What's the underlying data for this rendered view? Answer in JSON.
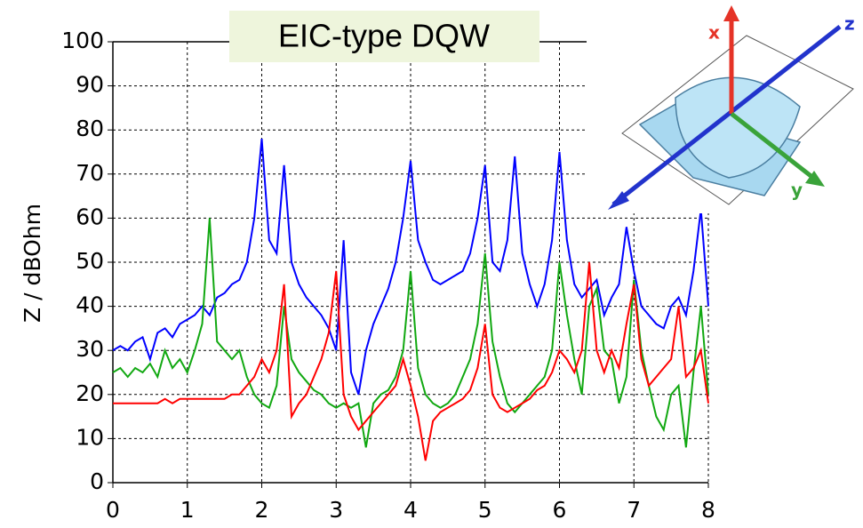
{
  "chart_data": {
    "type": "line",
    "title": "EIC-type DQW",
    "y_label": "Z / dBOhm",
    "x": [
      0,
      0.1,
      0.2,
      0.3,
      0.4,
      0.5,
      0.6,
      0.7,
      0.8,
      0.9,
      1,
      1.1,
      1.2,
      1.3,
      1.4,
      1.5,
      1.6,
      1.7,
      1.8,
      1.9,
      2,
      2.1,
      2.2,
      2.3,
      2.4,
      2.5,
      2.6,
      2.7,
      2.8,
      2.9,
      3,
      3.1,
      3.2,
      3.3,
      3.4,
      3.5,
      3.6,
      3.7,
      3.8,
      3.9,
      4,
      4.1,
      4.2,
      4.3,
      4.4,
      4.5,
      4.6,
      4.7,
      4.8,
      4.9,
      5,
      5.1,
      5.2,
      5.3,
      5.4,
      5.5,
      5.6,
      5.7,
      5.8,
      5.9,
      6,
      6.1,
      6.2,
      6.3,
      6.4,
      6.5,
      6.6,
      6.7,
      6.8,
      6.9,
      7,
      7.1,
      7.2,
      7.3,
      7.4,
      7.5,
      7.6,
      7.7,
      7.8,
      7.9,
      8
    ],
    "series": [
      {
        "name": "x",
        "color": "#0000ff",
        "values": [
          30,
          31,
          30,
          32,
          33,
          28,
          34,
          35,
          33,
          36,
          37,
          38,
          40,
          38,
          42,
          43,
          45,
          46,
          50,
          60,
          78,
          55,
          52,
          72,
          50,
          45,
          42,
          40,
          38,
          35,
          30,
          55,
          25,
          20,
          30,
          36,
          40,
          44,
          50,
          60,
          73,
          55,
          50,
          46,
          45,
          46,
          47,
          48,
          52,
          60,
          72,
          50,
          48,
          55,
          74,
          52,
          45,
          40,
          45,
          55,
          75,
          55,
          45,
          42,
          44,
          46,
          38,
          42,
          45,
          58,
          48,
          40,
          38,
          36,
          35,
          40,
          42,
          38,
          48,
          62,
          40
        ]
      },
      {
        "name": "y",
        "color": "#11a811",
        "values": [
          25,
          26,
          24,
          26,
          25,
          27,
          24,
          30,
          26,
          28,
          25,
          30,
          36,
          60,
          32,
          30,
          28,
          30,
          24,
          20,
          18,
          17,
          22,
          40,
          28,
          25,
          23,
          21,
          20,
          18,
          17,
          18,
          17,
          18,
          8,
          18,
          20,
          21,
          24,
          30,
          48,
          26,
          20,
          18,
          17,
          18,
          20,
          24,
          28,
          36,
          52,
          32,
          24,
          18,
          16,
          18,
          20,
          22,
          24,
          30,
          50,
          38,
          28,
          20,
          40,
          44,
          30,
          28,
          18,
          24,
          46,
          30,
          22,
          15,
          12,
          20,
          22,
          8,
          25,
          40,
          20
        ]
      },
      {
        "name": "z",
        "color": "#ff0000",
        "values": [
          18,
          18,
          18,
          18,
          18,
          18,
          18,
          19,
          18,
          19,
          19,
          19,
          19,
          19,
          19,
          19,
          20,
          20,
          22,
          24,
          28,
          25,
          30,
          45,
          15,
          18,
          20,
          24,
          28,
          34,
          48,
          20,
          15,
          12,
          14,
          16,
          18,
          20,
          22,
          28,
          22,
          15,
          5,
          14,
          16,
          17,
          18,
          19,
          21,
          26,
          36,
          20,
          17,
          16,
          17,
          18,
          19,
          21,
          22,
          25,
          30,
          28,
          25,
          30,
          50,
          30,
          25,
          30,
          26,
          36,
          45,
          28,
          22,
          24,
          26,
          28,
          40,
          24,
          26,
          30,
          18
        ]
      }
    ],
    "xlim": [
      0,
      8
    ],
    "ylim": [
      0,
      100
    ],
    "xticks": [
      0,
      1,
      2,
      3,
      4,
      5,
      6,
      7,
      8
    ],
    "yticks": [
      0,
      10,
      20,
      30,
      40,
      50,
      60,
      70,
      80,
      90,
      100
    ],
    "grid": true
  },
  "inset": {
    "x_label": "x",
    "y_label": "y",
    "z_label": "z"
  }
}
